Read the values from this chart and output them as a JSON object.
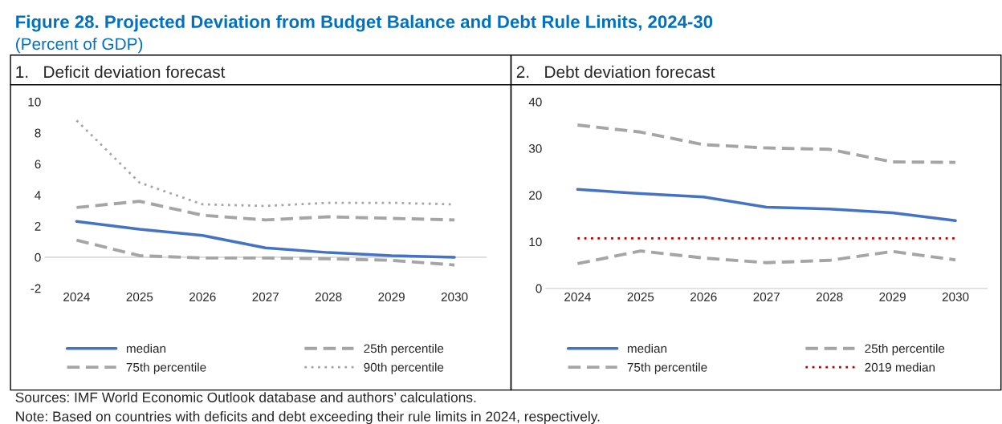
{
  "chart_data": [
    {
      "type": "line",
      "title": "1.   Deficit deviation forecast",
      "annotations": [
        "Figure 28. Projected Deviation from Budget Balance and Debt Rule Limits, 2024-30",
        "(Percent of GDP)",
        "Sources: IMF World Economic Outlook database and authors’ calculations.",
        "Note: Based on countries with deficits and debt exceeding their rule limits in 2024, respectively."
      ],
      "categories": [
        "2024",
        "2025",
        "2026",
        "2027",
        "2028",
        "2029",
        "2030"
      ],
      "series": [
        {
          "name": "median",
          "color": "#4472c4",
          "line_style": "solid",
          "values": [
            2.3,
            1.8,
            1.4,
            0.6,
            0.3,
            0.1,
            0.0
          ]
        },
        {
          "name": "25th percentile",
          "color": "#a5a5a5",
          "line_style": "dashed",
          "values": [
            1.1,
            0.1,
            -0.05,
            -0.05,
            -0.1,
            -0.2,
            -0.5
          ]
        },
        {
          "name": "75th percentile",
          "color": "#a5a5a5",
          "line_style": "dashed",
          "values": [
            3.2,
            3.6,
            2.7,
            2.4,
            2.6,
            2.5,
            2.4
          ]
        },
        {
          "name": "90th percentile",
          "color": "#a5a5a5",
          "line_style": "dotted",
          "values": [
            8.8,
            4.8,
            3.4,
            3.3,
            3.5,
            3.5,
            3.4
          ]
        }
      ],
      "ylim": [
        -2,
        10
      ],
      "yticks": [
        -2,
        0,
        2,
        4,
        6,
        8,
        10
      ],
      "grid": false,
      "legend": "bottom",
      "ref_lines": [
        {
          "axis": "y",
          "value": 0,
          "color": "#d9d9d9"
        }
      ]
    },
    {
      "type": "line",
      "title": "2.   Debt deviation forecast",
      "categories": [
        "2024",
        "2025",
        "2026",
        "2027",
        "2028",
        "2029",
        "2030"
      ],
      "series": [
        {
          "name": "median",
          "color": "#4472c4",
          "line_style": "solid",
          "values": [
            21.2,
            20.3,
            19.6,
            17.4,
            17.0,
            16.2,
            14.5
          ]
        },
        {
          "name": "25th percentile",
          "color": "#a5a5a5",
          "line_style": "dashed",
          "values": [
            5.3,
            8.0,
            6.5,
            5.5,
            6.0,
            7.9,
            6.1
          ]
        },
        {
          "name": "75th percentile",
          "color": "#a5a5a5",
          "line_style": "dashed",
          "values": [
            35.0,
            33.5,
            30.8,
            30.1,
            29.8,
            27.1,
            27.0
          ]
        },
        {
          "name": "2019 median",
          "color": "#c00000",
          "line_style": "dotted",
          "values": [
            10.7,
            10.7,
            10.7,
            10.7,
            10.7,
            10.7,
            10.7
          ]
        }
      ],
      "ylim": [
        0,
        40
      ],
      "yticks": [
        0,
        10,
        20,
        30,
        40
      ],
      "grid": false,
      "legend": "bottom"
    }
  ]
}
